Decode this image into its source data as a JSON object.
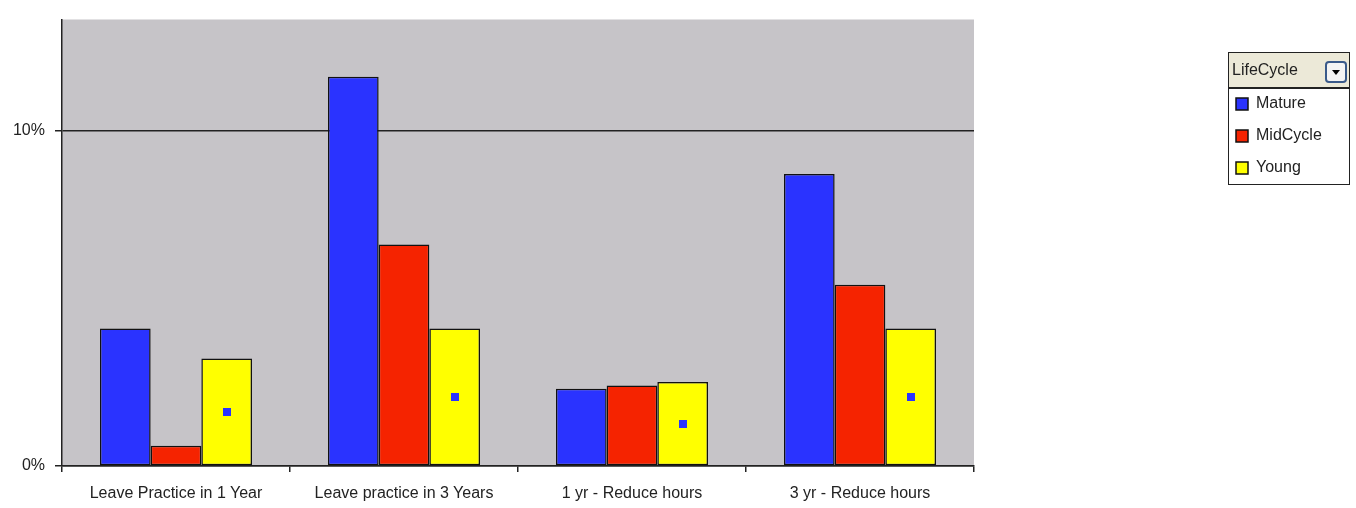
{
  "chart_data": {
    "type": "bar",
    "categories": [
      "Leave Practice in 1 Year",
      "Leave practice in 3 Years",
      "1 yr - Reduce hours",
      "3 yr - Reduce hours"
    ],
    "series": [
      {
        "name": "Mature",
        "color": "#2a33ff",
        "values": [
          4.1,
          11.6,
          2.3,
          8.7
        ]
      },
      {
        "name": "MidCycle",
        "color": "#f52300",
        "values": [
          0.6,
          6.6,
          2.4,
          5.4
        ]
      },
      {
        "name": "Young",
        "color": "#ffff00",
        "values": [
          3.2,
          4.1,
          2.5,
          4.1
        ]
      }
    ],
    "ylim": [
      0,
      13.3
    ],
    "yticks": [
      {
        "value": 0,
        "label": "0%"
      },
      {
        "value": 10,
        "label": "10%"
      }
    ],
    "grid": "y",
    "legend": "top right",
    "legend_title": "LifeCycle"
  }
}
